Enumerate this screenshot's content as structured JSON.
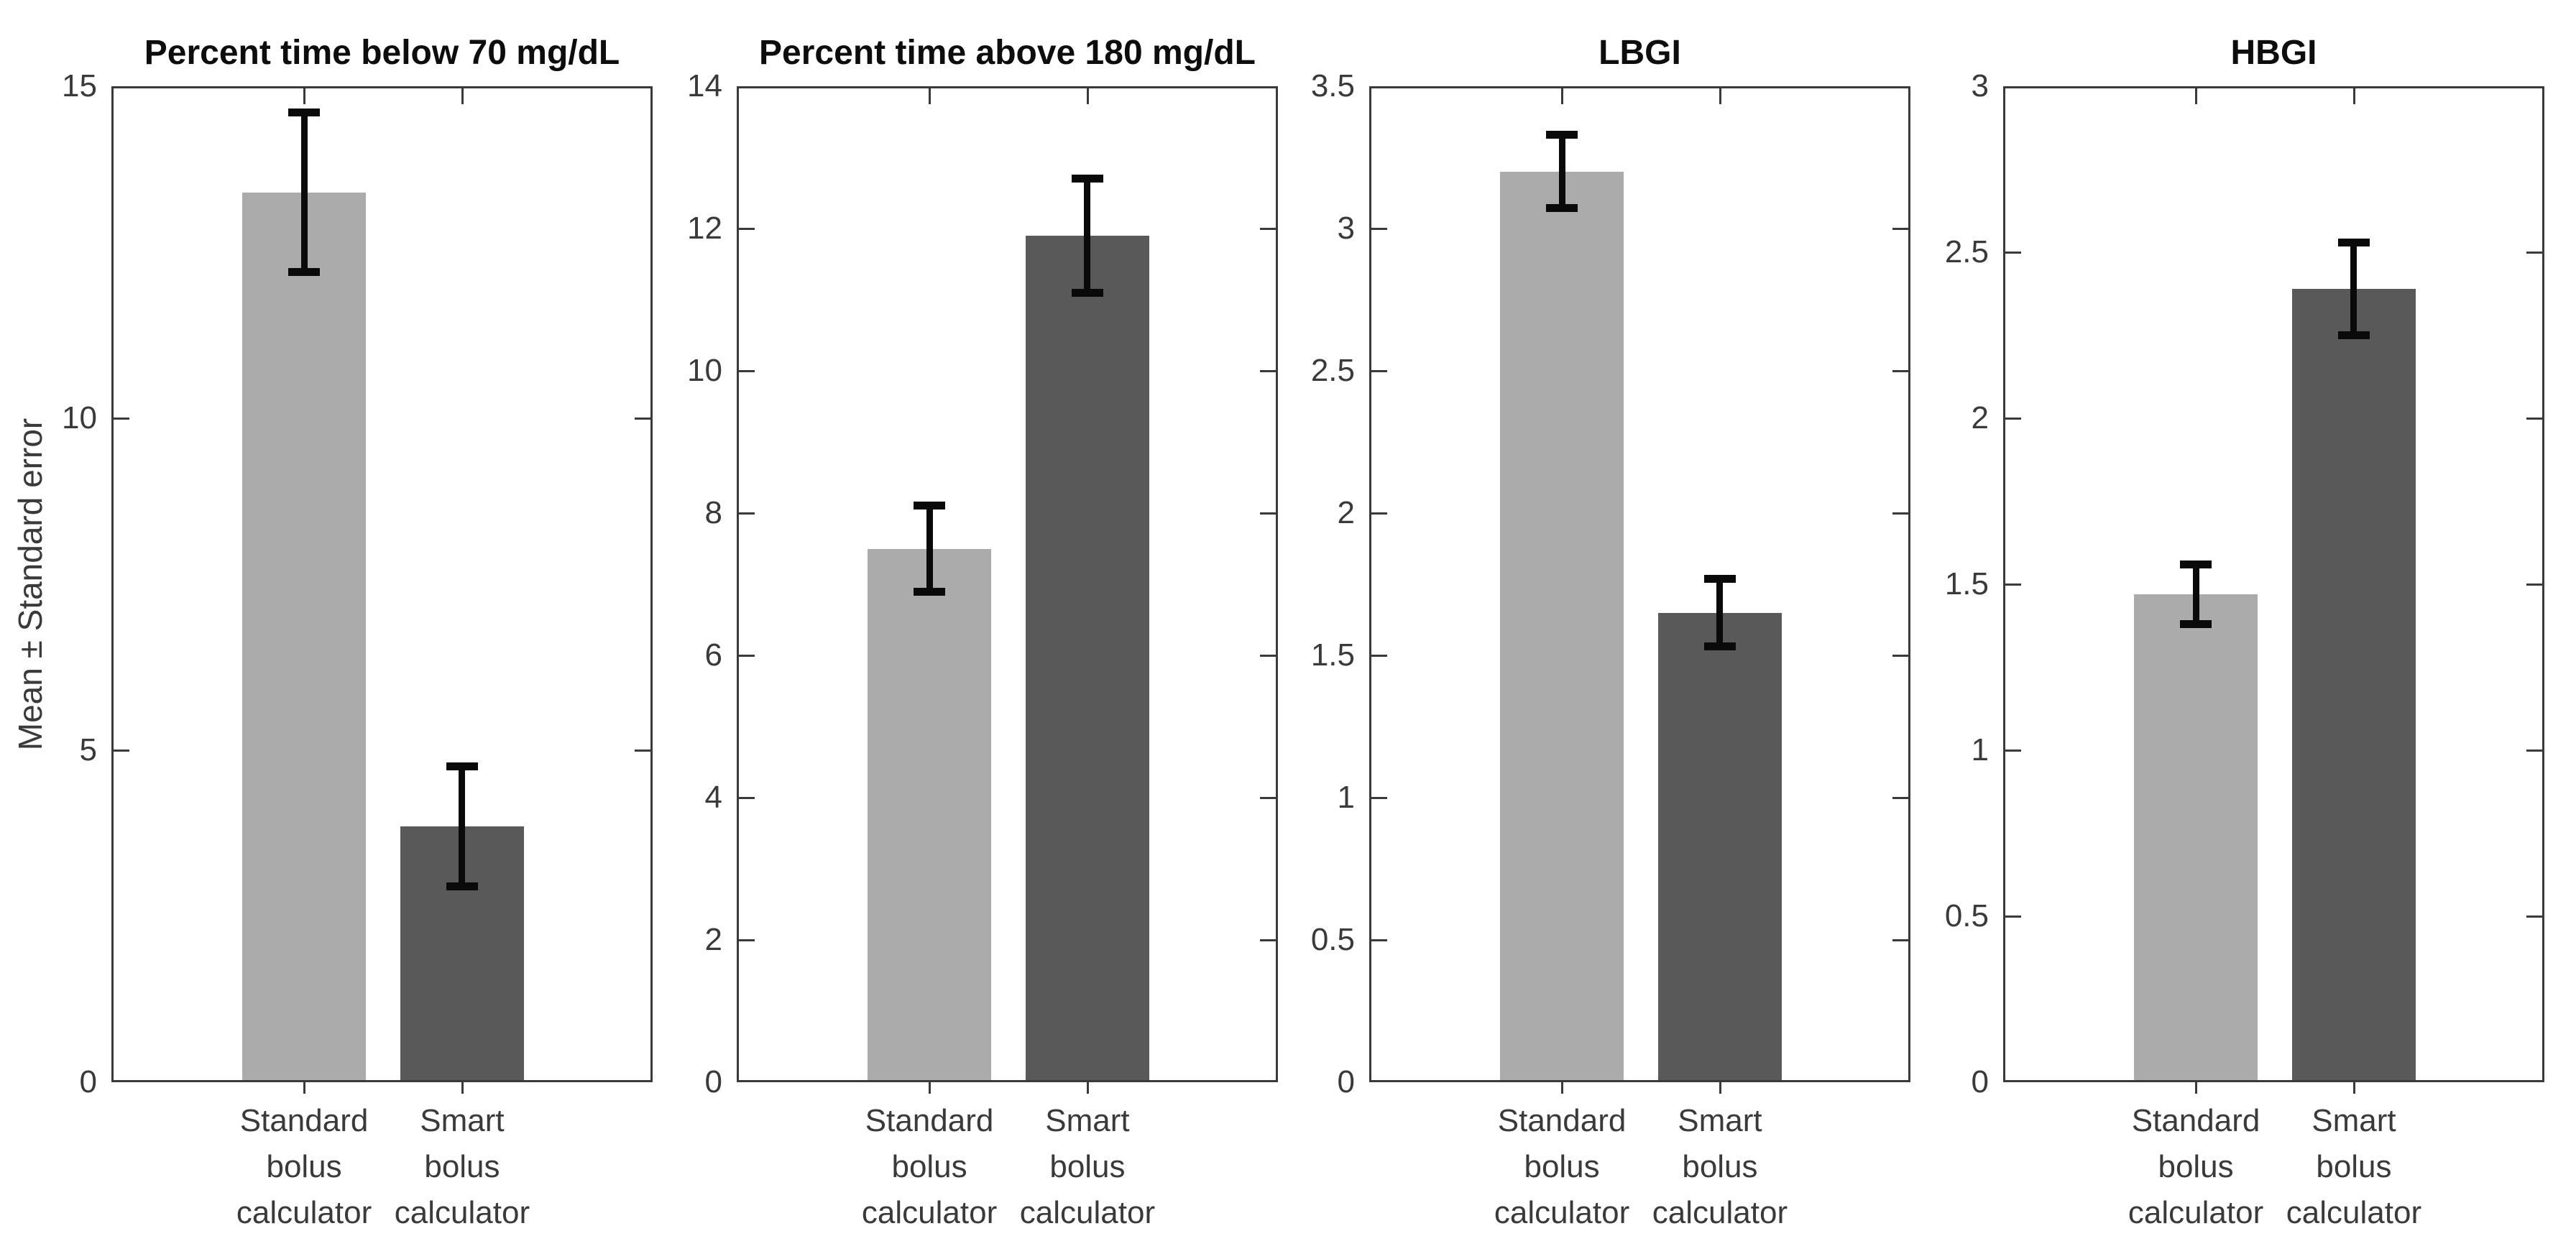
{
  "figure": {
    "ylabel": "Mean ± Standard error"
  },
  "chart_data": {
    "type": "bar",
    "layout": "1x4 subplots, MATLAB style, box on, no grid, error bars = ± standard error",
    "ylabel_leftmost_panel_only": "Mean ± Standard error",
    "categories": [
      "Standard bolus calculator",
      "Smart bolus calculator"
    ],
    "category_label_lines": [
      [
        "Standard",
        "bolus",
        "calculator"
      ],
      [
        "Smart",
        "bolus",
        "calculator"
      ]
    ],
    "bar_colors": [
      "#ABABAB",
      "#595959"
    ],
    "error_bar_color": "#0a0a0a",
    "axis_color": "#3a3a3a",
    "grid": false,
    "panels": [
      {
        "title": "Percent time below 70 mg/dL",
        "ylim": [
          0,
          15
        ],
        "yticks": [
          0,
          5,
          10,
          15
        ],
        "means": [
          13.4,
          3.85
        ],
        "std_errors": [
          1.25,
          0.95
        ]
      },
      {
        "title": "Percent time above 180 mg/dL",
        "ylim": [
          0,
          14
        ],
        "yticks": [
          0,
          2,
          4,
          6,
          8,
          10,
          12,
          14
        ],
        "means": [
          7.5,
          11.9
        ],
        "std_errors": [
          0.65,
          0.85
        ]
      },
      {
        "title": "LBGI",
        "ylim": [
          0,
          3.5
        ],
        "yticks": [
          0,
          0.5,
          1,
          1.5,
          2,
          2.5,
          3,
          3.5
        ],
        "means": [
          3.2,
          1.65
        ],
        "std_errors": [
          0.14,
          0.13
        ]
      },
      {
        "title": "HBGI",
        "ylim": [
          0,
          3
        ],
        "yticks": [
          0,
          0.5,
          1,
          1.5,
          2,
          2.5,
          3
        ],
        "means": [
          1.47,
          2.39
        ],
        "std_errors": [
          0.1,
          0.15
        ]
      }
    ]
  }
}
